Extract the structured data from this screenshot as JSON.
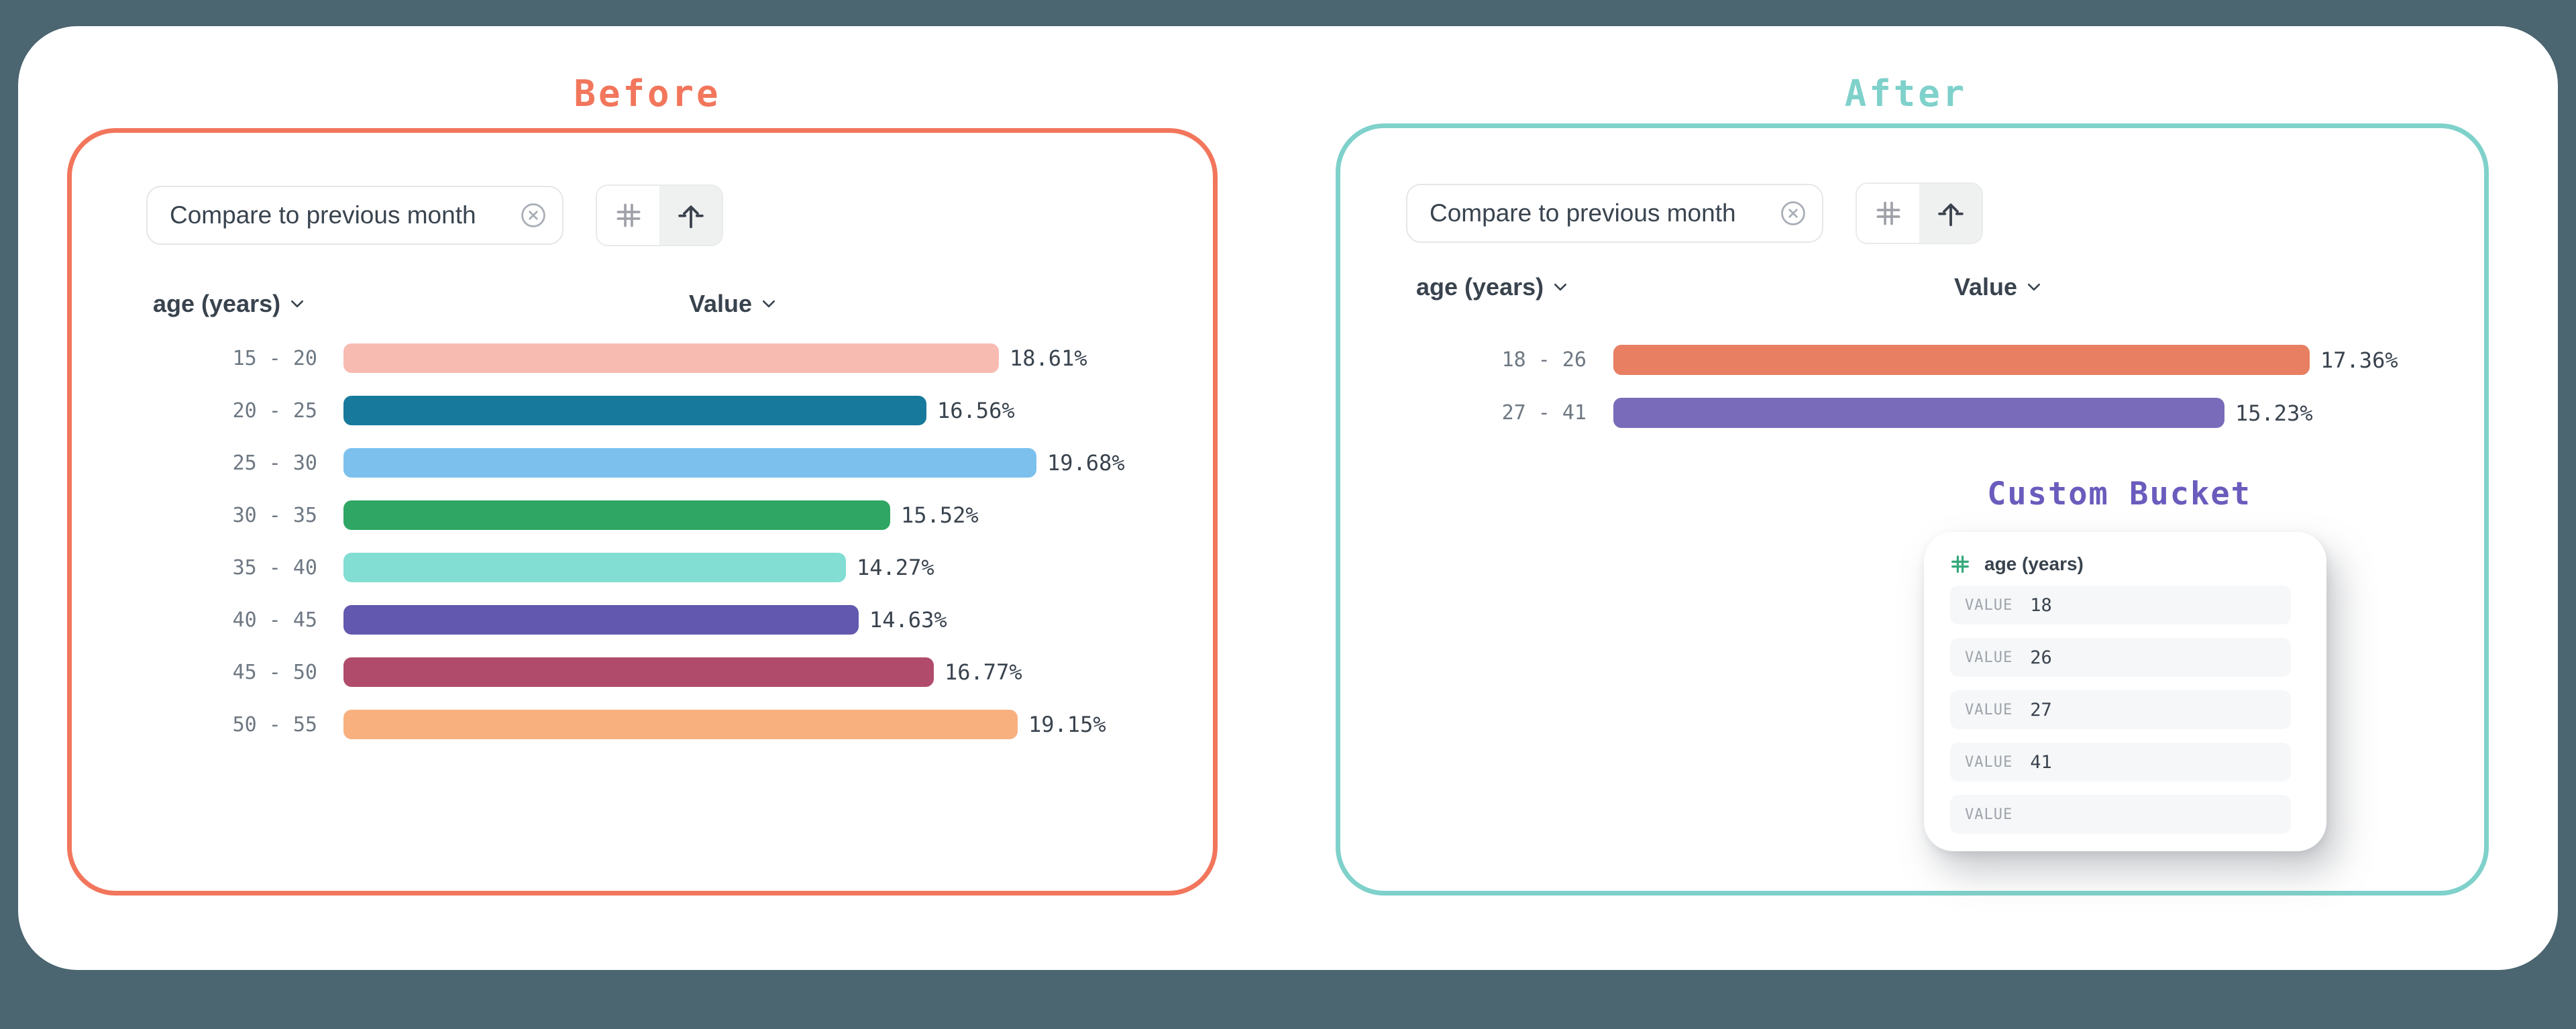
{
  "theme": {
    "page_background": "#4B6571",
    "card_background": "#FFFFFF",
    "before_accent": "#F2765C",
    "after_accent": "#7FD1CB",
    "bucket_accent": "#6A5CBD",
    "hash_green": "#34A879",
    "text_dark": "#39434E",
    "text_gray": "#6E7883"
  },
  "before": {
    "title": "Before",
    "chip": {
      "label": "Compare to previous month",
      "remove_icon": "x-circle-icon"
    },
    "toolbar": {
      "left_icon": "hash-icon",
      "right_icon": "arrow-up-icon",
      "selected": "right"
    },
    "columns": {
      "category": "age (years)",
      "value": "Value"
    },
    "rows": [
      {
        "label": "15 - 20",
        "display": "18.61%",
        "value": 18.61,
        "color": "#F7BBB2"
      },
      {
        "label": "20 - 25",
        "display": "16.56%",
        "value": 16.56,
        "color": "#17799B"
      },
      {
        "label": "25 - 30",
        "display": "19.68%",
        "value": 19.68,
        "color": "#7CC1EE"
      },
      {
        "label": "30 - 35",
        "display": "15.52%",
        "value": 15.52,
        "color": "#2FA663"
      },
      {
        "label": "35 - 40",
        "display": "14.27%",
        "value": 14.27,
        "color": "#82DDD3"
      },
      {
        "label": "40 - 45",
        "display": "14.63%",
        "value": 14.63,
        "color": "#6358AF"
      },
      {
        "label": "45 - 50",
        "display": "16.77%",
        "value": 16.77,
        "color": "#B04B6B"
      },
      {
        "label": "50 - 55",
        "display": "19.15%",
        "value": 19.15,
        "color": "#F8B07E",
        "dot_color": "#EE8069",
        "textured": true
      }
    ]
  },
  "after": {
    "title": "After",
    "chip": {
      "label": "Compare to previous month",
      "remove_icon": "x-circle-icon"
    },
    "toolbar": {
      "left_icon": "hash-icon",
      "right_icon": "arrow-up-icon",
      "selected": "right"
    },
    "columns": {
      "category": "age (years)",
      "value": "Value"
    },
    "rows": [
      {
        "label": "18 - 26",
        "display": "17.36%",
        "value": 17.36,
        "color": "#E87F63"
      },
      {
        "label": "27 - 41",
        "display": "15.23%",
        "value": 15.23,
        "color": "#7A6BBA"
      }
    ],
    "custom_bucket": {
      "title": "Custom Bucket",
      "field": "age (years)",
      "field_icon": "hash-icon",
      "rows": [
        {
          "label": "VALUE",
          "value": "18"
        },
        {
          "label": "VALUE",
          "value": "26"
        },
        {
          "label": "VALUE",
          "value": "27"
        },
        {
          "label": "VALUE",
          "value": "41"
        },
        {
          "label": "VALUE",
          "value": ""
        }
      ]
    }
  },
  "chart_data": [
    {
      "type": "bar",
      "title": "Before — age (years) distribution",
      "orientation": "horizontal",
      "categories": [
        "15 - 20",
        "20 - 25",
        "25 - 30",
        "30 - 35",
        "35 - 40",
        "40 - 45",
        "45 - 50",
        "50 - 55"
      ],
      "values": [
        18.61,
        16.56,
        19.68,
        15.52,
        14.27,
        14.63,
        16.77,
        19.15
      ],
      "xlabel": "Value",
      "ylabel": "age (years)",
      "unit": "%",
      "grid": false,
      "legend": false
    },
    {
      "type": "bar",
      "title": "After — age (years) distribution (custom buckets)",
      "orientation": "horizontal",
      "categories": [
        "18 - 26",
        "27 - 41"
      ],
      "values": [
        17.36,
        15.23
      ],
      "xlabel": "Value",
      "ylabel": "age (years)",
      "unit": "%",
      "grid": false,
      "legend": false
    }
  ]
}
